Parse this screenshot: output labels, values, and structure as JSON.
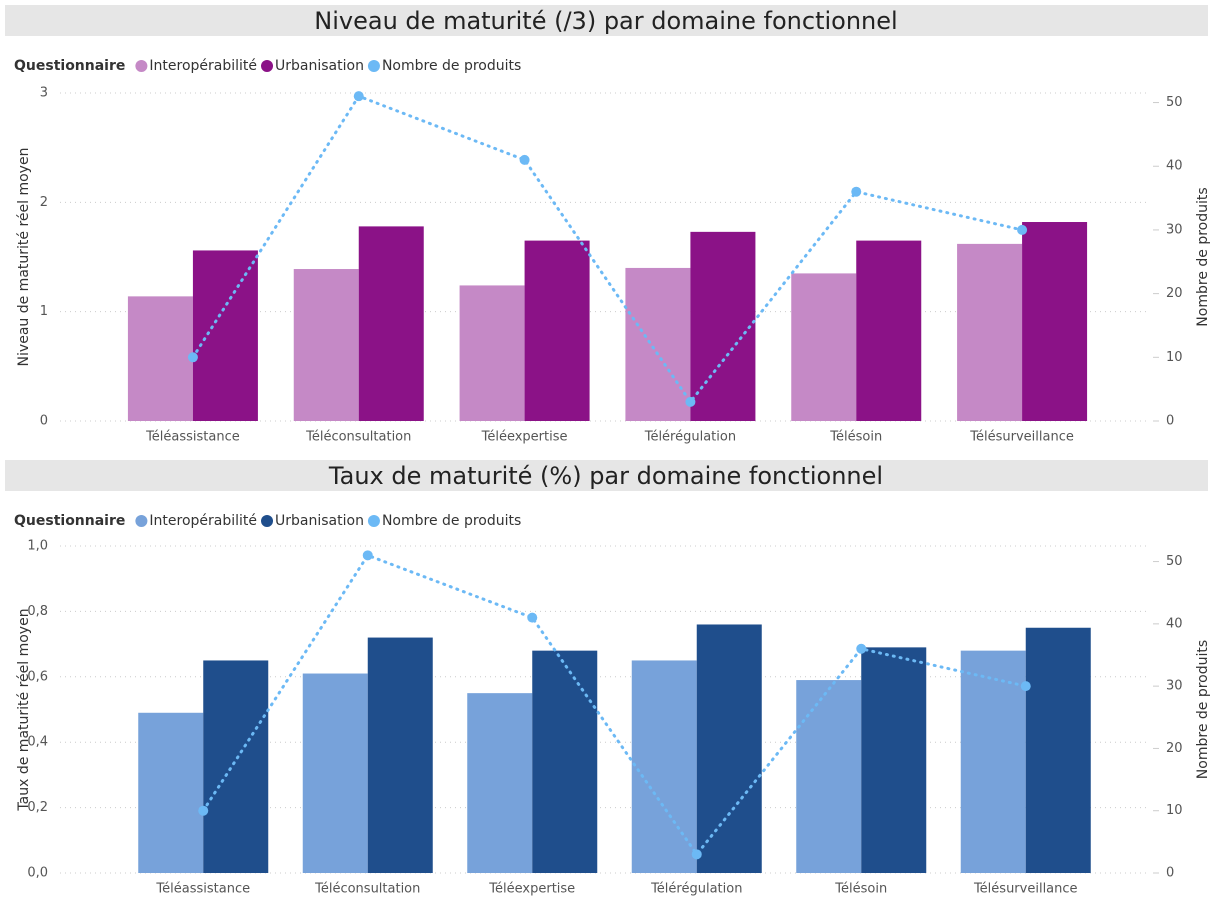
{
  "chart_data": [
    {
      "type": "bar",
      "title": "Niveau de maturité (/3) par domaine fonctionnel",
      "legend_title": "Questionnaire",
      "y_label": "Niveau de maturité réel moyen",
      "y2_label": "Nombre de produits",
      "categories": [
        "Téléassistance",
        "Téléconsultation",
        "Téléexpertise",
        "Télérégulation",
        "Télésoin",
        "Télésurveillance"
      ],
      "series": [
        {
          "name": "Interopérabilité",
          "color": "#c589c6",
          "values": [
            1.14,
            1.39,
            1.24,
            1.4,
            1.35,
            1.62
          ]
        },
        {
          "name": "Urbanisation",
          "color": "#8b1287",
          "values": [
            1.56,
            1.78,
            1.65,
            1.73,
            1.65,
            1.82
          ]
        },
        {
          "name": "Nombre de produits",
          "color": "#6cb9f5",
          "type": "line",
          "axis": "y2",
          "values": [
            10,
            51,
            41,
            3,
            36,
            30
          ]
        }
      ],
      "ylim": [
        0,
        3
      ],
      "yticks": [
        0,
        1,
        2,
        3
      ],
      "y2lim": [
        0,
        51.5
      ],
      "y2ticks": [
        0,
        10,
        20,
        30,
        40,
        50
      ],
      "grid": true
    },
    {
      "type": "bar",
      "title": "Taux de maturité (%) par domaine fonctionnel",
      "legend_title": "Questionnaire",
      "y_label": "Taux de maturité réel moyen",
      "y2_label": "Nombre de produits",
      "categories": [
        "Téléassistance",
        "Téléconsultation",
        "Téléexpertise",
        "Télérégulation",
        "Télésoin",
        "Télésurveillance"
      ],
      "series": [
        {
          "name": "Interopérabilité",
          "color": "#77a2da",
          "values": [
            0.49,
            0.61,
            0.55,
            0.65,
            0.59,
            0.68
          ]
        },
        {
          "name": "Urbanisation",
          "color": "#1f4e8c",
          "values": [
            0.65,
            0.72,
            0.68,
            0.76,
            0.69,
            0.75
          ]
        },
        {
          "name": "Nombre de produits",
          "color": "#6cb9f5",
          "type": "line",
          "axis": "y2",
          "values": [
            10,
            51,
            41,
            3,
            36,
            30
          ]
        }
      ],
      "ylim": [
        0,
        1
      ],
      "yticks": [
        {
          "value": 0,
          "label": "0,0"
        },
        {
          "value": 0.2,
          "label": "0,2"
        },
        {
          "value": 0.4,
          "label": "0,4"
        },
        {
          "value": 0.6,
          "label": "0,6"
        },
        {
          "value": 0.8,
          "label": "0,8"
        },
        {
          "value": 1,
          "label": "1,0"
        }
      ],
      "y2lim": [
        0,
        52.5
      ],
      "y2ticks": [
        0,
        10,
        20,
        30,
        40,
        50
      ],
      "grid": true
    }
  ]
}
